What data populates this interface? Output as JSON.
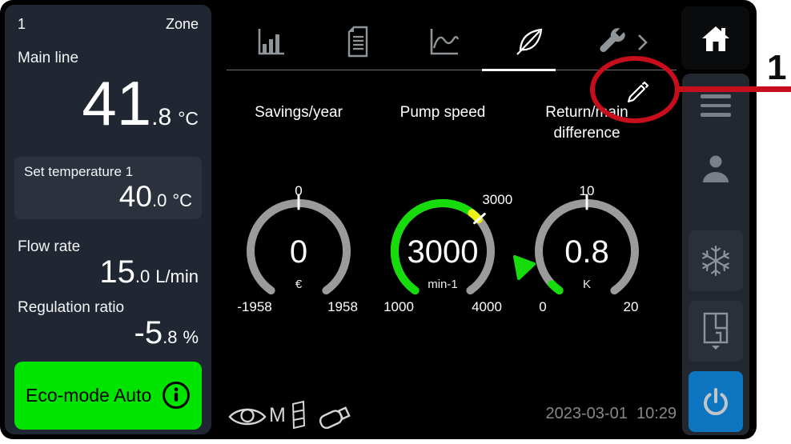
{
  "colors": {
    "accent_green": "#00e400",
    "gauge_green": "#16dc0c",
    "gauge_yellow": "#f0ee18",
    "gauge_track": "#9b9b9b",
    "accent_blue": "#0e76c0",
    "annotation_red": "#c60e1c"
  },
  "left_panel": {
    "zone_number": "1",
    "zone_label": "Zone",
    "main_line_label": "Main line",
    "main_line_value": "41",
    "main_line_decimal": ".8",
    "main_line_unit": "°C",
    "set_temp_label": "Set temperature 1",
    "set_temp_value": "40",
    "set_temp_decimal": ".0",
    "set_temp_unit": "°C",
    "flow_label": "Flow rate",
    "flow_value": "15",
    "flow_decimal": ".0",
    "flow_unit": "L/min",
    "regulation_label": "Regulation ratio",
    "regulation_value": "-5",
    "regulation_decimal": ".8",
    "regulation_unit": "%",
    "eco_button_label": "Eco-mode Auto"
  },
  "main": {
    "gauges": [
      {
        "label": "Savings/year",
        "value": 0,
        "value_display": "0",
        "unit": "€",
        "min": -1958,
        "max": 1958,
        "min_label": "-1958",
        "max_label": "1958",
        "tick_value": 0,
        "tick_label": "0",
        "show_fill": false,
        "fill_highlight": false,
        "pointer": false
      },
      {
        "label": "Pump speed",
        "value": 3000,
        "value_display": "3000",
        "unit": "min-1",
        "min": 1000,
        "max": 4000,
        "min_label": "1000",
        "max_label": "4000",
        "tick_value": 3000,
        "tick_label": "3000",
        "show_fill": true,
        "fill_highlight": true,
        "pointer": false
      },
      {
        "label": "Return/main difference",
        "value": 0.8,
        "value_display": "0.8",
        "unit": "K",
        "min": 0,
        "max": 20,
        "min_label": "0",
        "max_label": "20",
        "tick_value": 10,
        "tick_label": "10",
        "show_fill": true,
        "fill_highlight": false,
        "pointer": true
      }
    ]
  },
  "status_bar": {
    "monitor_label": "M",
    "datetime": "2023-03-01  10:29"
  },
  "annotation": {
    "label": "1"
  },
  "chart_data": [
    {
      "type": "gauge",
      "title": "Savings/year",
      "value": 0,
      "unit": "€",
      "range": [
        -1958,
        1958
      ],
      "setpoint": 0
    },
    {
      "type": "gauge",
      "title": "Pump speed",
      "value": 3000,
      "unit": "min-1",
      "range": [
        1000,
        4000
      ],
      "setpoint": 3000
    },
    {
      "type": "gauge",
      "title": "Return/main difference",
      "value": 0.8,
      "unit": "K",
      "range": [
        0,
        20
      ],
      "setpoint": 10
    }
  ]
}
